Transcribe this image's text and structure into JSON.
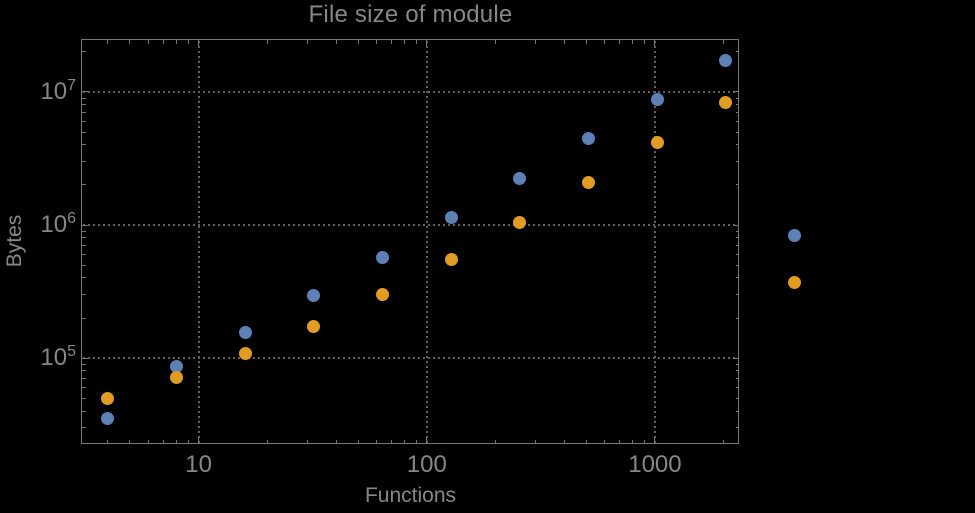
{
  "chart_data": {
    "type": "scatter",
    "title": "File size of module",
    "xlabel": "Functions",
    "ylabel": "Bytes",
    "x_scale": "log",
    "y_scale": "log",
    "grid": "dotted",
    "legend": "none",
    "x_range": [
      3.05,
      2360
    ],
    "y_range": [
      22600,
      25000000
    ],
    "x": [
      4,
      8,
      16,
      32,
      64,
      128,
      256,
      512,
      1024,
      2048,
      4096
    ],
    "series": [
      {
        "name": "blue",
        "color": "#5e81b5",
        "values": [
          35000,
          87000,
          155000,
          293000,
          565000,
          1130000,
          2220000,
          4430000,
          8700000,
          17100000,
          840000
        ]
      },
      {
        "name": "orange",
        "color": "#e19c24",
        "values": [
          50000,
          72000,
          109000,
          174000,
          298000,
          555000,
          1040000,
          2070000,
          4140000,
          8260000,
          367000
        ]
      }
    ],
    "x_ticks": {
      "major": [
        10,
        100,
        1000
      ],
      "labels": [
        "10",
        "100",
        "1000"
      ]
    },
    "y_ticks": {
      "major": [
        100000,
        1000000,
        10000000
      ],
      "labels": [
        {
          "base": "10",
          "exp": "5"
        },
        {
          "base": "10",
          "exp": "6"
        },
        {
          "base": "10",
          "exp": "7"
        }
      ]
    }
  },
  "colors": {
    "background": "#000000",
    "frame": "#767676",
    "grid_dots": "#616161",
    "text": "#878787",
    "series_blue": "#5e81b5",
    "series_orange": "#e19c24"
  }
}
